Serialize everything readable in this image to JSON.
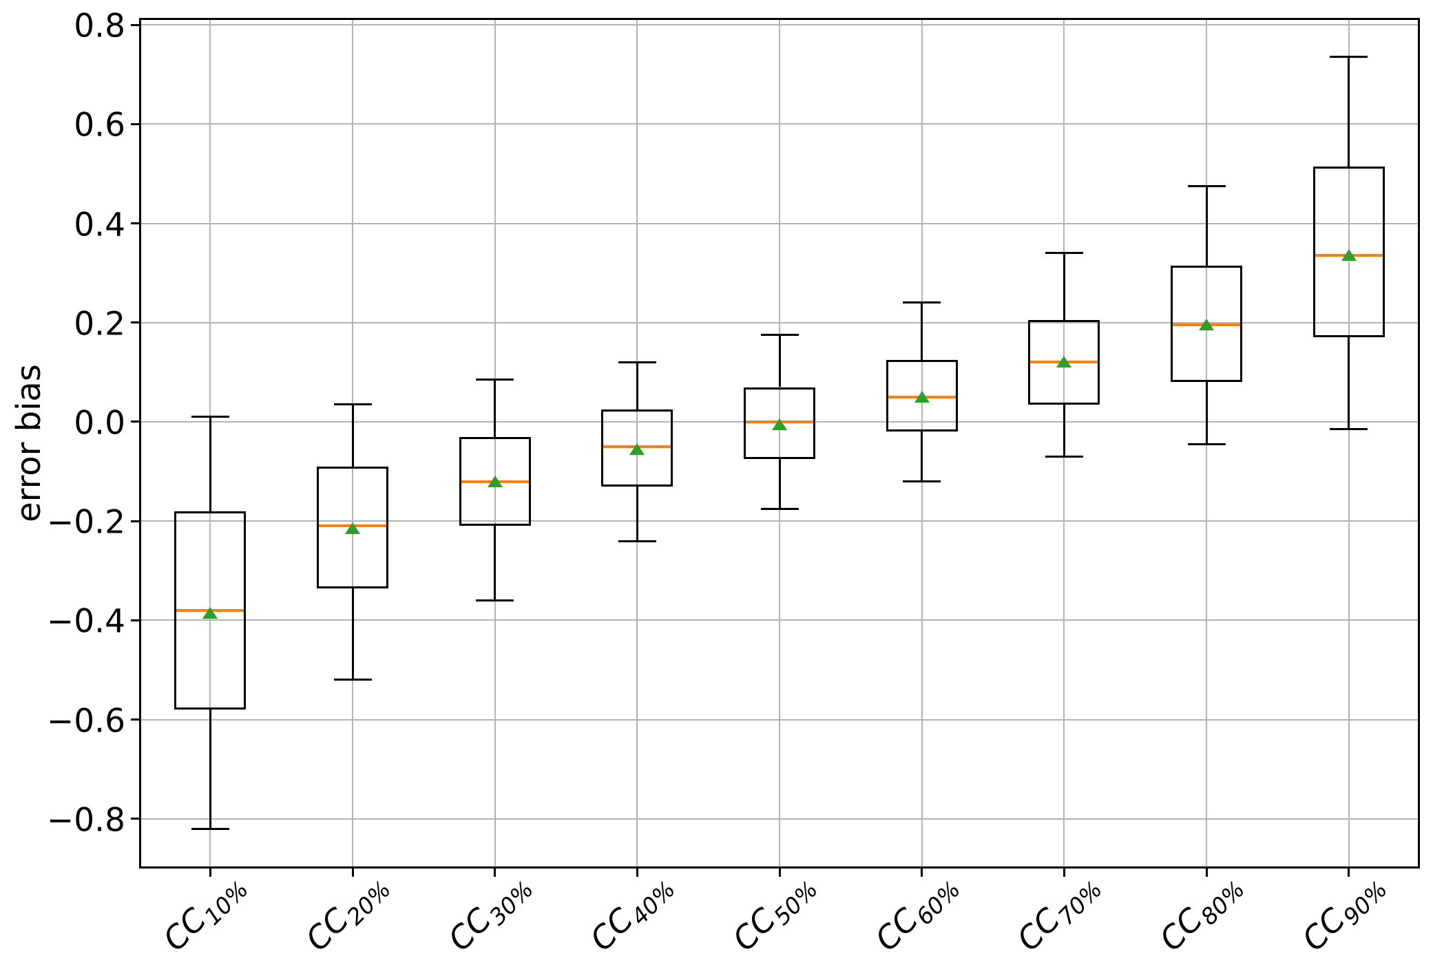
{
  "figure": {
    "background": "#ffffff"
  },
  "axes": {
    "ylabel": "error bias",
    "yticks": [
      {
        "label": "0.8",
        "value": 0.8
      },
      {
        "label": "0.6",
        "value": 0.6
      },
      {
        "label": "0.4",
        "value": 0.4
      },
      {
        "label": "0.2",
        "value": 0.2
      },
      {
        "label": "0.0",
        "value": 0.0
      },
      {
        "label": "−0.2",
        "value": -0.2
      },
      {
        "label": "−0.4",
        "value": -0.4
      },
      {
        "label": "−0.6",
        "value": -0.6
      },
      {
        "label": "−0.8",
        "value": -0.8
      }
    ],
    "ylim": [
      -0.9,
      0.814
    ],
    "grid": true,
    "grid_color": "#b4b4b4",
    "spine_color": "#000000"
  },
  "chart_data": {
    "type": "boxplot",
    "title": "",
    "xlabel": "",
    "ylabel": "error bias",
    "ylim": [
      -0.9,
      0.814
    ],
    "grid": true,
    "legend": "none",
    "categories": [
      {
        "base": "CC",
        "sub": "10%"
      },
      {
        "base": "CC",
        "sub": "20%"
      },
      {
        "base": "CC",
        "sub": "30%"
      },
      {
        "base": "CC",
        "sub": "40%"
      },
      {
        "base": "CC",
        "sub": "50%"
      },
      {
        "base": "CC",
        "sub": "60%"
      },
      {
        "base": "CC",
        "sub": "70%"
      },
      {
        "base": "CC",
        "sub": "80%"
      },
      {
        "base": "CC",
        "sub": "90%"
      }
    ],
    "boxes": [
      {
        "whislo": -0.82,
        "q1": -0.58,
        "med": -0.38,
        "mean": -0.385,
        "q3": -0.18,
        "whishi": 0.01
      },
      {
        "whislo": -0.52,
        "q1": -0.335,
        "med": -0.21,
        "mean": -0.215,
        "q3": -0.09,
        "whishi": 0.035
      },
      {
        "whislo": -0.36,
        "q1": -0.21,
        "med": -0.12,
        "mean": -0.12,
        "q3": -0.03,
        "whishi": 0.085
      },
      {
        "whislo": -0.24,
        "q1": -0.13,
        "med": -0.05,
        "mean": -0.055,
        "q3": 0.025,
        "whishi": 0.12
      },
      {
        "whislo": -0.175,
        "q1": -0.075,
        "med": 0.0,
        "mean": -0.005,
        "q3": 0.07,
        "whishi": 0.175
      },
      {
        "whislo": -0.12,
        "q1": -0.02,
        "med": 0.05,
        "mean": 0.05,
        "q3": 0.125,
        "whishi": 0.24
      },
      {
        "whislo": -0.07,
        "q1": 0.035,
        "med": 0.12,
        "mean": 0.12,
        "q3": 0.205,
        "whishi": 0.34
      },
      {
        "whislo": -0.045,
        "q1": 0.08,
        "med": 0.195,
        "mean": 0.195,
        "q3": 0.315,
        "whishi": 0.475
      },
      {
        "whislo": -0.015,
        "q1": 0.17,
        "med": 0.335,
        "mean": 0.335,
        "q3": 0.515,
        "whishi": 0.735
      }
    ],
    "colors": {
      "box_edge": "#000000",
      "median": "#ff7f0e",
      "mean_marker": "#2ca02c",
      "grid": "#b4b4b4"
    },
    "mean_marker_shape": "triangle-up"
  }
}
